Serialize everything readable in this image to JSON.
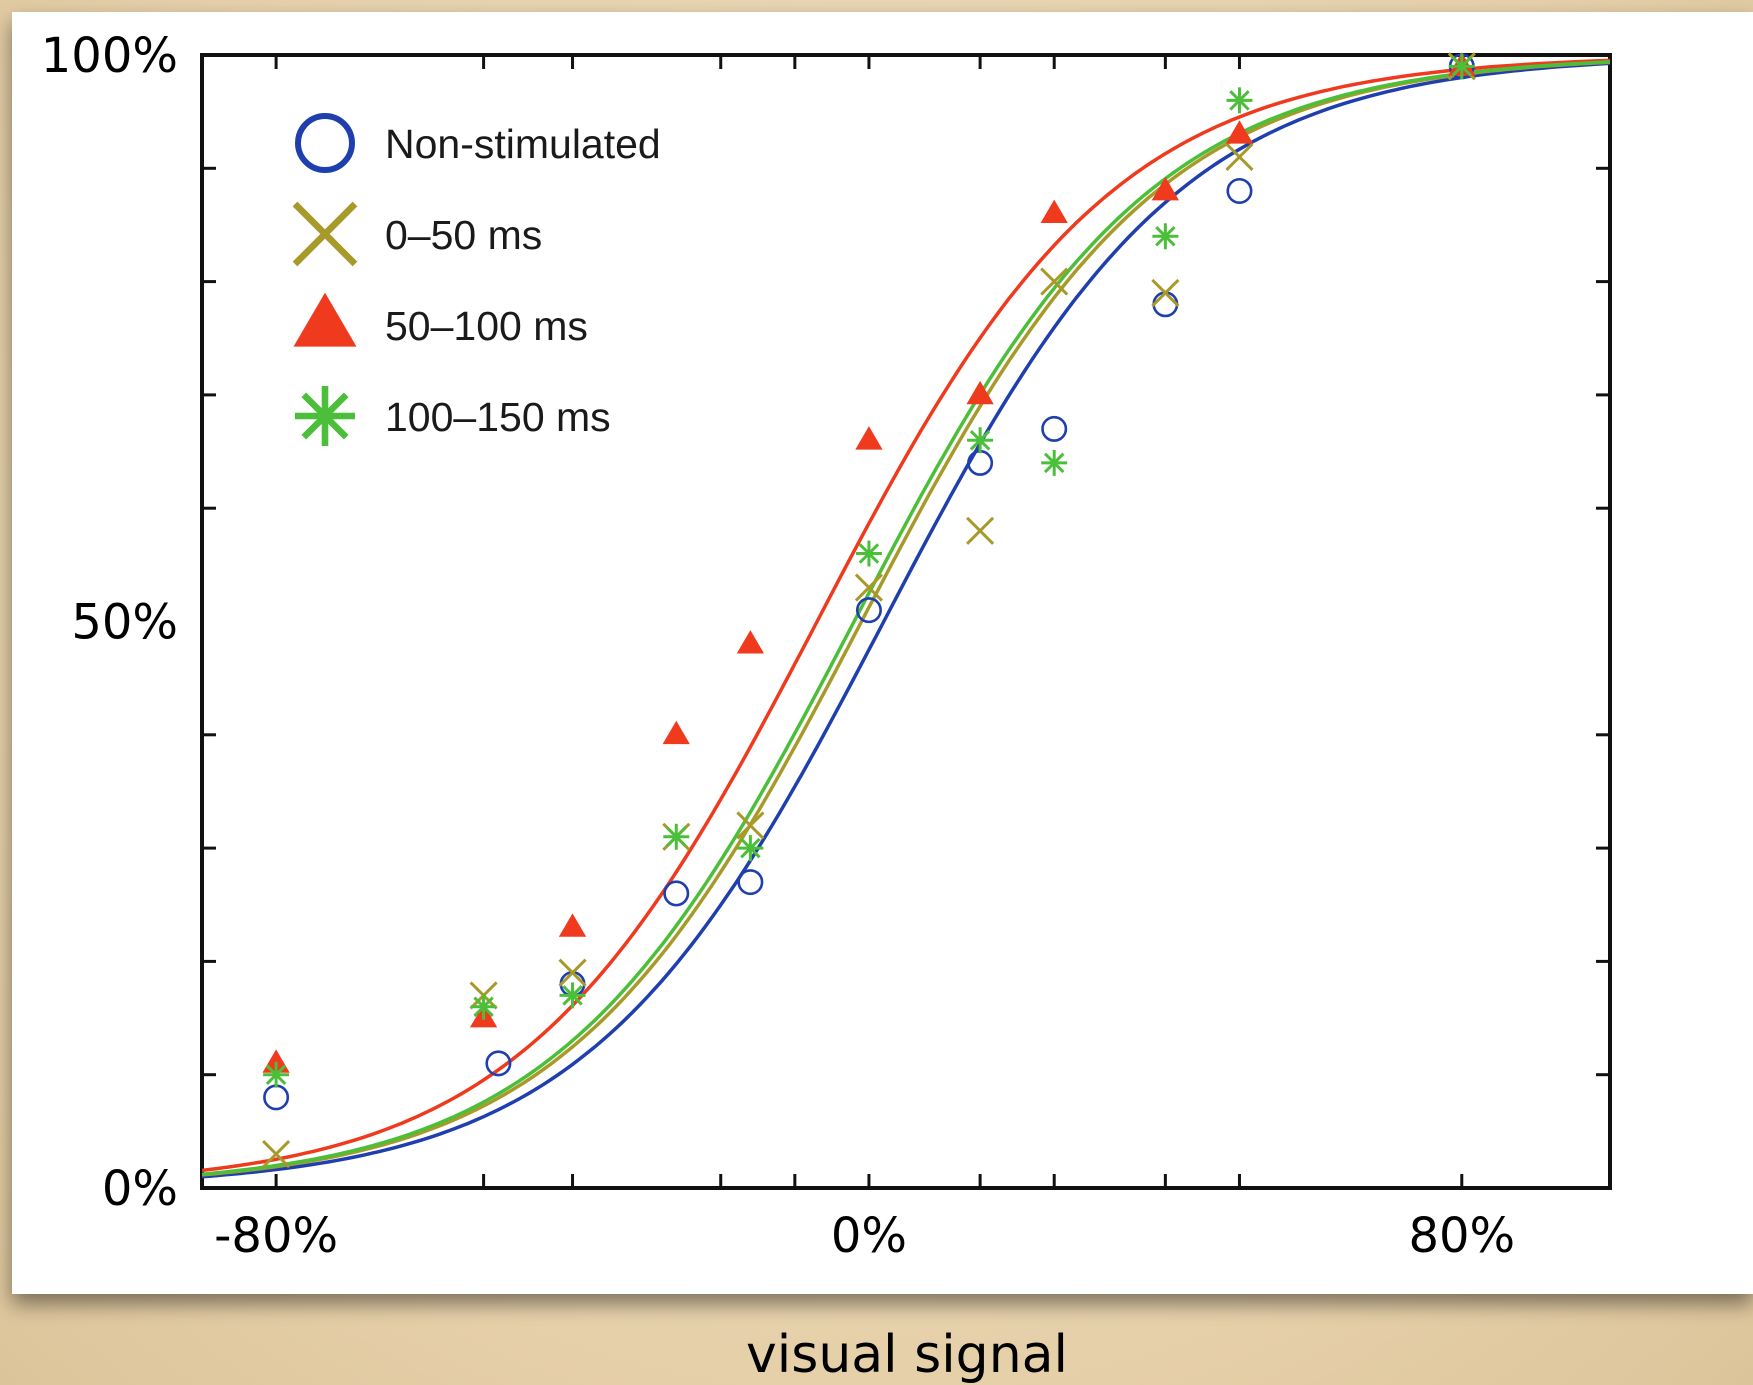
{
  "chart_data": {
    "type": "scatter",
    "title": "",
    "xlabel": "visual signal",
    "ylabel": "",
    "xlim": [
      -90,
      100
    ],
    "ylim": [
      0,
      100
    ],
    "x_ticks": [
      -80,
      0,
      80
    ],
    "x_tick_labels": [
      "-80%",
      "0%",
      "80%"
    ],
    "y_ticks": [
      0,
      50,
      100
    ],
    "y_tick_labels": [
      "0%",
      "50%",
      "100%"
    ],
    "minor_x_ticks": [
      -80,
      -52,
      -40,
      -20,
      -10,
      0,
      15,
      25,
      40,
      50,
      80
    ],
    "minor_y_ticks": [
      10,
      20,
      30,
      40,
      60,
      70,
      80,
      90
    ],
    "grid": false,
    "legend_position": "top-left",
    "series": [
      {
        "name": "Non-stimulated",
        "marker": "circle",
        "color": "#1f3fae",
        "x": [
          -80,
          -50,
          -40,
          -26,
          -16,
          0,
          15,
          25,
          40,
          50,
          80
        ],
        "y": [
          8,
          11,
          18,
          26,
          27,
          51,
          64,
          67,
          78,
          88,
          99
        ],
        "fit": {
          "midpoint": 2,
          "scale": 20
        }
      },
      {
        "name": "0–50 ms",
        "marker": "x",
        "color": "#a89a2a",
        "x": [
          -80,
          -52,
          -40,
          -26,
          -16,
          0,
          15,
          25,
          40,
          50,
          80
        ],
        "y": [
          3,
          17,
          19,
          31,
          32,
          53,
          58,
          80,
          79,
          91,
          99
        ],
        "fit": {
          "midpoint": -1,
          "scale": 20
        }
      },
      {
        "name": "50–100 ms",
        "marker": "triangle",
        "color": "#f03a1e",
        "x": [
          -80,
          -52,
          -40,
          -26,
          -16,
          0,
          15,
          25,
          40,
          50,
          80
        ],
        "y": [
          11,
          15,
          23,
          40,
          48,
          66,
          70,
          86,
          88,
          93,
          99
        ],
        "fit": {
          "midpoint": -7,
          "scale": 20
        }
      },
      {
        "name": "100–150 ms",
        "marker": "asterisk",
        "color": "#4cbf3a",
        "x": [
          -80,
          -52,
          -40,
          -26,
          -16,
          0,
          15,
          25,
          40,
          50,
          80
        ],
        "y": [
          10,
          16,
          17,
          31,
          30,
          56,
          66,
          64,
          84,
          96,
          99
        ],
        "fit": {
          "midpoint": -2,
          "scale": 20
        }
      }
    ]
  }
}
